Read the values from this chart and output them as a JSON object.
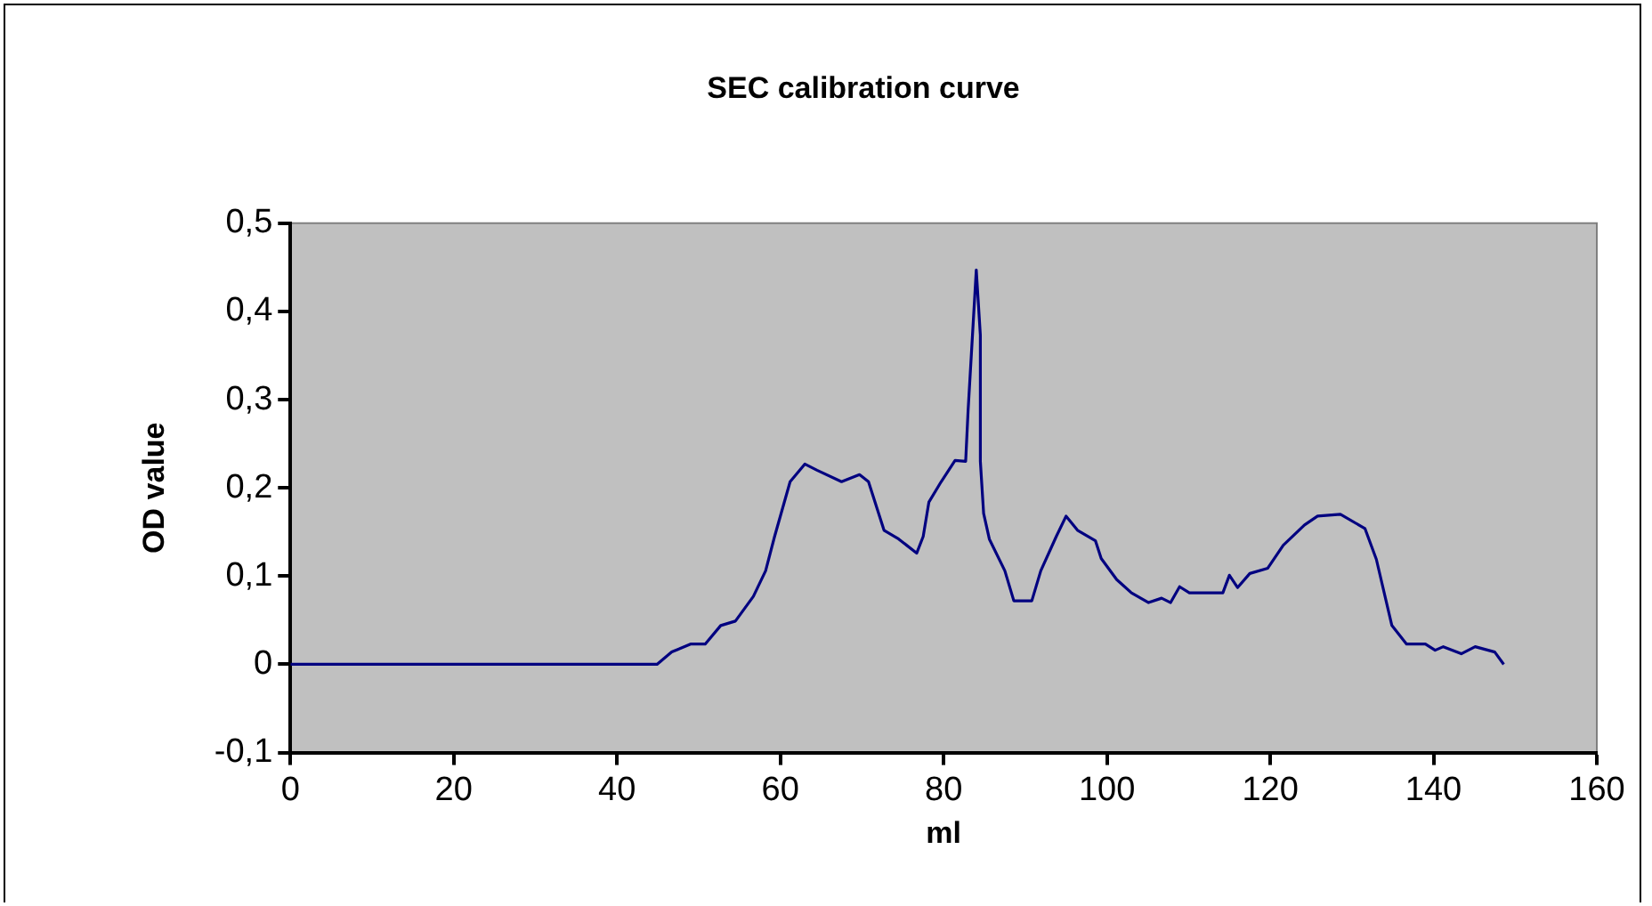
{
  "chart_data": {
    "type": "line",
    "title": "SEC calibration curve",
    "xlabel": "ml",
    "ylabel": "OD value",
    "xlim": [
      0,
      160
    ],
    "xticks": [
      0,
      20,
      40,
      60,
      80,
      100,
      120,
      140,
      160
    ],
    "ylim": [
      -0.1,
      0.5
    ],
    "yticks": [
      {
        "value": -0.1,
        "label": "-0,1"
      },
      {
        "value": 0,
        "label": "0"
      },
      {
        "value": 0.1,
        "label": "0,1"
      },
      {
        "value": 0.2,
        "label": "0,2"
      },
      {
        "value": 0.3,
        "label": "0,3"
      },
      {
        "value": 0.4,
        "label": "0,4"
      },
      {
        "value": 0.5,
        "label": "0,5"
      }
    ],
    "grid": false,
    "legend": false,
    "marker": "none",
    "line_style": "solid",
    "series": [
      {
        "color": "#000080",
        "x": [
          0,
          44.9,
          46.7,
          49,
          50.8,
          52.7,
          54.5,
          56.7,
          58.2,
          59.3,
          61.2,
          63,
          64.5,
          67.5,
          69.7,
          70.8,
          72.7,
          74.5,
          76.7,
          77.5,
          78.2,
          79.7,
          81.4,
          82.7,
          83,
          84,
          84.5,
          84.5,
          84.9,
          85.6,
          87.5,
          88.6,
          90.8,
          91.9,
          93.8,
          95,
          96.4,
          98.6,
          99.3,
          101.2,
          103,
          105.1,
          106.7,
          107.8,
          108.9,
          110.1,
          114.2,
          115,
          116,
          117.5,
          119.7,
          121.6,
          124.2,
          125.8,
          128.6,
          131.6,
          133,
          134.9,
          136.7,
          139,
          140.2,
          141.2,
          143.4,
          145.1,
          147.5,
          148.6
        ],
        "values": [
          0,
          0,
          0.014,
          0.023,
          0.023,
          0.044,
          0.049,
          0.077,
          0.106,
          0.145,
          0.207,
          0.227,
          0.22,
          0.207,
          0.215,
          0.207,
          0.152,
          0.142,
          0.126,
          0.145,
          0.184,
          0.207,
          0.231,
          0.23,
          0.288,
          0.447,
          0.373,
          0.23,
          0.171,
          0.142,
          0.106,
          0.072,
          0.072,
          0.106,
          0.145,
          0.168,
          0.152,
          0.14,
          0.12,
          0.096,
          0.081,
          0.07,
          0.075,
          0.07,
          0.088,
          0.081,
          0.081,
          0.101,
          0.087,
          0.103,
          0.109,
          0.135,
          0.158,
          0.168,
          0.17,
          0.154,
          0.119,
          0.044,
          0.023,
          0.023,
          0.016,
          0.02,
          0.012,
          0.02,
          0.014,
          0
        ]
      }
    ]
  }
}
